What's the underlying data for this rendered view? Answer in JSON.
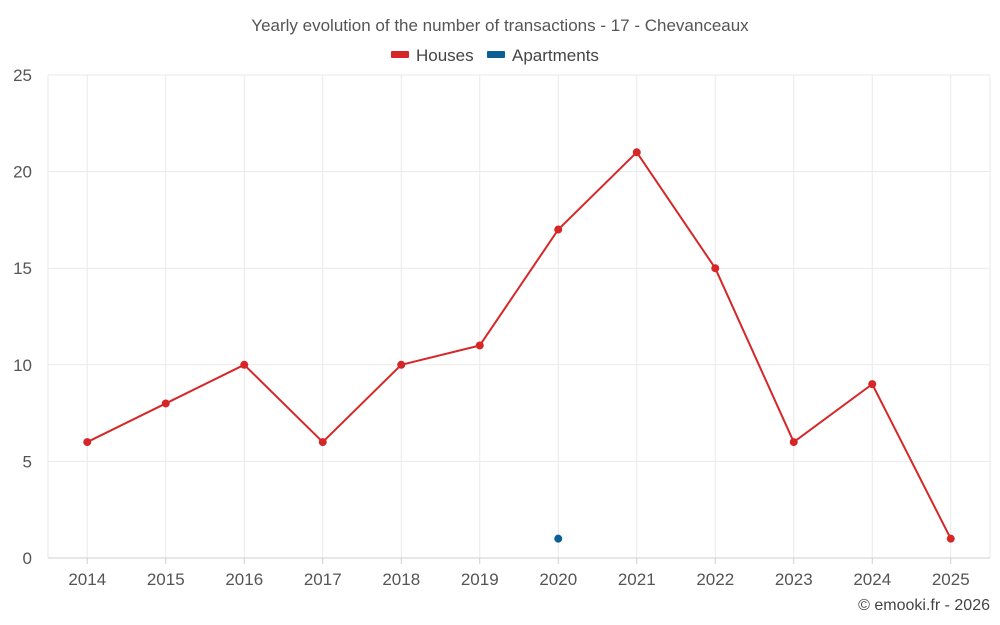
{
  "chart_data": {
    "type": "line",
    "title": "Yearly evolution of the number of transactions - 17 - Chevanceaux",
    "xlabel": "",
    "ylabel": "",
    "categories": [
      "2014",
      "2015",
      "2016",
      "2017",
      "2018",
      "2019",
      "2020",
      "2021",
      "2022",
      "2023",
      "2024",
      "2025"
    ],
    "ylim": [
      0,
      25
    ],
    "yticks": [
      0,
      5,
      10,
      15,
      20,
      25
    ],
    "grid": true,
    "legend_position": "top-center",
    "series": [
      {
        "name": "Houses",
        "color": "#d62728",
        "values": [
          6,
          8,
          10,
          6,
          10,
          11,
          17,
          21,
          15,
          6,
          9,
          1
        ]
      },
      {
        "name": "Apartments",
        "color": "#0a5f96",
        "values": [
          null,
          null,
          null,
          null,
          null,
          null,
          1,
          null,
          null,
          null,
          null,
          null
        ]
      }
    ],
    "credit": "© emooki.fr - 2026"
  }
}
